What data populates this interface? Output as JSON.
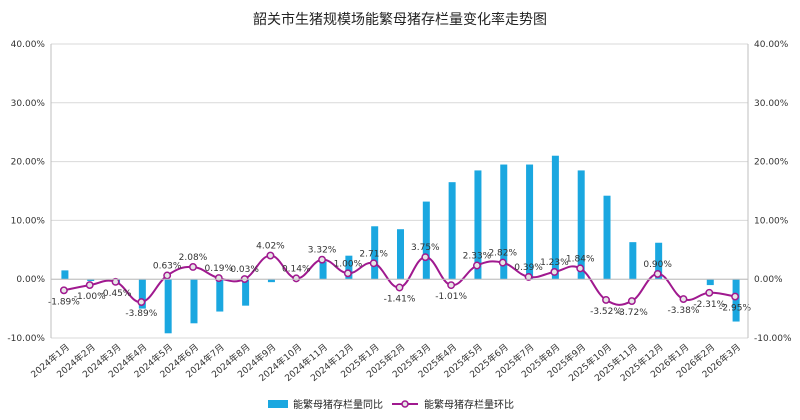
{
  "chart_data": {
    "type": "bar",
    "title": "韶关市生猪规模场能繁母猪存栏量变化率走势图",
    "categories": [
      "2024年1月",
      "2024年2月",
      "2024年3月",
      "2024年4月",
      "2024年5月",
      "2024年6月",
      "2024年7月",
      "2024年8月",
      "2024年9月",
      "2024年10月",
      "2024年11月",
      "2024年12月",
      "2025年1月",
      "2025年2月",
      "2025年3月",
      "2025年4月",
      "2025年5月",
      "2025年6月",
      "2025年7月",
      "2025年8月",
      "2025年9月",
      "2025年10月",
      "2025年11月",
      "2025年12月",
      "2026年1月",
      "2026年2月",
      "2026年3月"
    ],
    "series": [
      {
        "name": "能繁母猪存栏量同比",
        "type": "bar",
        "color": "#1aa7e0",
        "values": [
          1.5,
          -0.3,
          -0.8,
          -5.0,
          -9.2,
          -7.5,
          -5.5,
          -4.5,
          -0.5,
          0.0,
          3.0,
          4.0,
          9.0,
          8.5,
          13.2,
          16.5,
          18.5,
          19.5,
          19.5,
          21.0,
          18.5,
          14.2,
          6.3,
          6.2,
          0.0,
          -1.0,
          -7.2
        ]
      },
      {
        "name": "能繁母猪存栏量环比",
        "type": "line",
        "color": "#a0198f",
        "values": [
          -1.89,
          -1.0,
          -0.45,
          -3.89,
          0.63,
          2.08,
          0.19,
          0.03,
          4.02,
          0.14,
          3.32,
          1.0,
          2.71,
          -1.41,
          3.75,
          -1.01,
          2.33,
          2.82,
          0.39,
          1.23,
          1.84,
          -3.52,
          -3.72,
          0.9,
          -3.38,
          -2.31,
          -2.95
        ],
        "labels": [
          "-1.89%",
          "-1.00%",
          "-0.45%",
          "-3.89%",
          "0.63%",
          "2.08%",
          "0.19%",
          "0.03%",
          "4.02%",
          "0.14%",
          "3.32%",
          "1.00%",
          "2.71%",
          "-1.41%",
          "3.75%",
          "-1.01%",
          "2.33%",
          "2.82%",
          "0.39%",
          "1.23%",
          "1.84%",
          "-3.52%",
          "-3.72%",
          "0.90%",
          "-3.38%",
          "-2.31%",
          "-2.95%"
        ]
      }
    ],
    "y_left": {
      "min": -10,
      "max": 40,
      "ticks": [
        "-10.00%",
        "0.00%",
        "10.00%",
        "20.00%",
        "30.00%",
        "40.00%"
      ]
    },
    "y_right": {
      "min": -10,
      "max": 40,
      "ticks": [
        "-10.00%",
        "0.00%",
        "10.00%",
        "20.00%",
        "30.00%",
        "40.00%"
      ]
    },
    "legend_position": "bottom",
    "grid": true
  }
}
